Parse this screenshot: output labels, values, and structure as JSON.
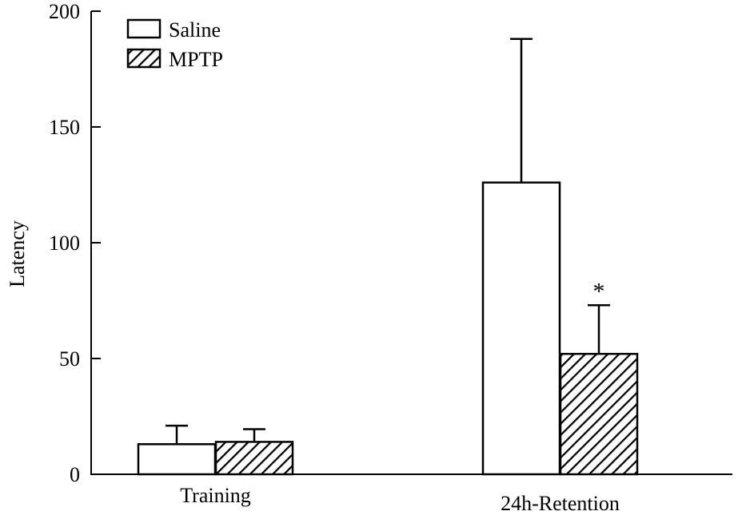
{
  "chart_data": {
    "type": "bar",
    "title": "",
    "xlabel": "",
    "ylabel": "Latency",
    "ylim": [
      0,
      200
    ],
    "yticks": [
      0,
      50,
      100,
      150,
      200
    ],
    "categories": [
      "Training",
      "24h-Retention"
    ],
    "series": [
      {
        "name": "Saline",
        "values": [
          13,
          126
        ],
        "errors": [
          8,
          62
        ],
        "pattern": "open"
      },
      {
        "name": "MPTP",
        "values": [
          14,
          52
        ],
        "errors": [
          5.5,
          21
        ],
        "pattern": "hatched"
      }
    ],
    "annotations": [
      {
        "text": "*",
        "category": "24h-Retention",
        "series": "MPTP"
      }
    ],
    "legend": "top-left",
    "grid": false,
    "colors": {
      "bar_edge": "#000000",
      "saline_fill": "#ffffff",
      "mptp_hatch": "#000000"
    }
  }
}
